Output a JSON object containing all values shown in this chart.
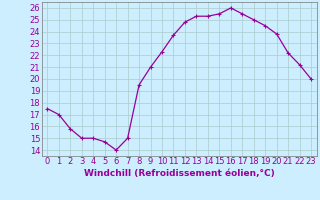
{
  "x": [
    0,
    1,
    2,
    3,
    4,
    5,
    6,
    7,
    8,
    9,
    10,
    11,
    12,
    13,
    14,
    15,
    16,
    17,
    18,
    19,
    20,
    21,
    22,
    23
  ],
  "y": [
    17.5,
    17.0,
    15.8,
    15.0,
    15.0,
    14.7,
    14.0,
    15.0,
    19.5,
    21.0,
    22.3,
    23.7,
    24.8,
    25.3,
    25.3,
    25.5,
    26.0,
    25.5,
    25.0,
    24.5,
    23.8,
    22.2,
    21.2,
    20.0
  ],
  "line_color": "#990099",
  "marker": "+",
  "marker_size": 3,
  "marker_lw": 0.8,
  "bg_color": "#cceeff",
  "grid_color": "#aacccc",
  "xlabel": "Windchill (Refroidissement éolien,°C)",
  "xlim": [
    -0.5,
    23.5
  ],
  "ylim": [
    13.5,
    26.5
  ],
  "yticks": [
    14,
    15,
    16,
    17,
    18,
    19,
    20,
    21,
    22,
    23,
    24,
    25,
    26
  ],
  "xticks": [
    0,
    1,
    2,
    3,
    4,
    5,
    6,
    7,
    8,
    9,
    10,
    11,
    12,
    13,
    14,
    15,
    16,
    17,
    18,
    19,
    20,
    21,
    22,
    23
  ],
  "xlabel_fontsize": 6.5,
  "tick_fontsize": 6,
  "line_color2": "#990099",
  "lw": 0.9
}
